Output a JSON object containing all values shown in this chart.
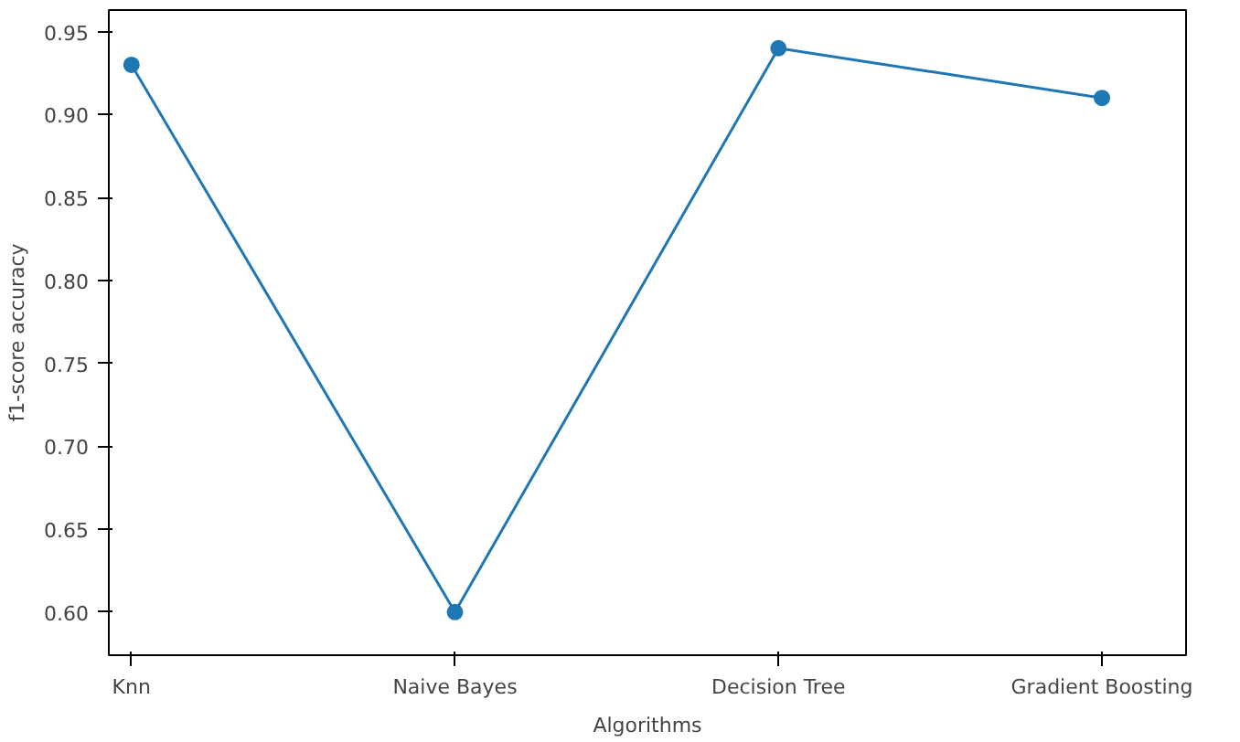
{
  "chart_data": {
    "type": "line",
    "xlabel": "Algorithms",
    "ylabel": "f1-score accuracy",
    "categories": [
      "Knn",
      "Naive Bayes",
      "Decision Tree",
      "Gradient Boosting"
    ],
    "series": [
      {
        "color": "#1f77b4",
        "values": [
          0.93,
          0.6,
          0.94,
          0.91
        ]
      }
    ],
    "ylim": [
      0.574,
      0.963
    ],
    "yticks": [
      {
        "value": 0.6,
        "label": "0.60"
      },
      0.65,
      {
        "value": 0.7,
        "label": "0.70"
      },
      0.75,
      {
        "value": 0.8,
        "label": "0.80"
      },
      0.85,
      {
        "value": 0.9,
        "label": "0.90"
      },
      0.95
    ],
    "marker": "circle",
    "line_style": "solid",
    "grid": false
  }
}
